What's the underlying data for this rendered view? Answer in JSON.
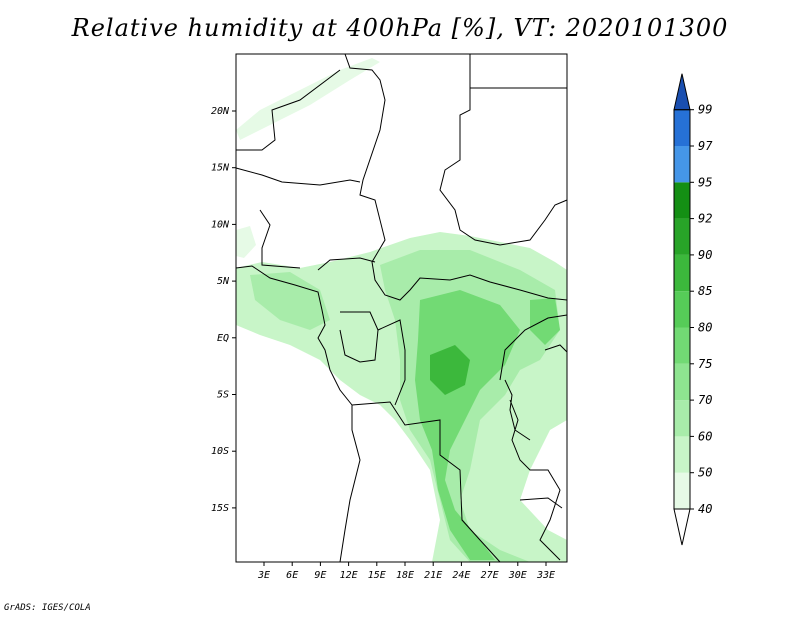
{
  "title": "Relative humidity at 400hPa [%], VT: 2020101300",
  "footer": "GrADS: IGES/COLA",
  "map": {
    "lat_ticks": [
      "20N",
      "15N",
      "10N",
      "5N",
      "EQ",
      "5S",
      "10S",
      "15S"
    ],
    "lon_ticks": [
      "3E",
      "6E",
      "9E",
      "12E",
      "15E",
      "18E",
      "21E",
      "24E",
      "27E",
      "30E",
      "33E"
    ]
  },
  "colorbar": {
    "levels": [
      "40",
      "50",
      "60",
      "70",
      "75",
      "80",
      "85",
      "90",
      "92",
      "95",
      "97",
      "99"
    ],
    "colors": {
      "35-40": "#ffffff",
      "40-50": "#e6fae6",
      "50-60": "#c8f5c8",
      "60-70": "#a8ecaa",
      "70-75": "#8ee490",
      "75-80": "#72da74",
      "80-85": "#56cc58",
      "85-90": "#3cb83c",
      "90-92": "#28a428",
      "92-95": "#148f14",
      "95-97": "#4596e8",
      "97-99": "#2671d6",
      ">99": "#1a4fb0"
    }
  }
}
